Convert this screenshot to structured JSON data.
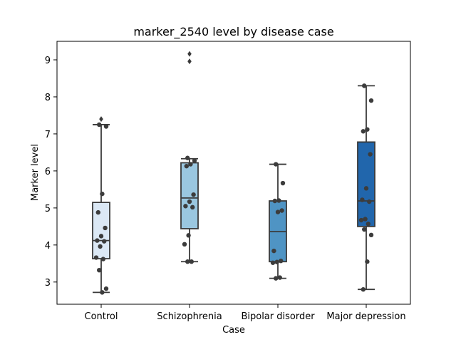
{
  "chart_data": {
    "type": "box",
    "title": "marker_2540 level by disease case",
    "xlabel": "Case",
    "ylabel": "Marker level",
    "ylim": [
      2.4,
      9.5
    ],
    "yticks": [
      "3",
      "4",
      "5",
      "6",
      "7",
      "8",
      "9"
    ],
    "categories": [
      "Control",
      "Schizophrenia",
      "Bipolar disorder",
      "Major depression"
    ],
    "box_colors": [
      "#dbe8f5",
      "#9ac7e0",
      "#4f94c4",
      "#2166ac"
    ],
    "grid": false,
    "boxes": [
      {
        "q1": 3.63,
        "median": 4.12,
        "q3": 5.15,
        "whisker_low": 2.72,
        "whisker_high": 7.25,
        "outliers": [
          7.4
        ]
      },
      {
        "q1": 4.44,
        "median": 5.27,
        "q3": 6.22,
        "whisker_low": 3.55,
        "whisker_high": 6.33,
        "outliers": [
          9.16,
          8.96
        ]
      },
      {
        "q1": 3.55,
        "median": 4.36,
        "q3": 5.19,
        "whisker_low": 3.1,
        "whisker_high": 6.18,
        "outliers": []
      },
      {
        "q1": 4.5,
        "median": 5.19,
        "q3": 6.78,
        "whisker_low": 2.8,
        "whisker_high": 8.3,
        "outliers": []
      }
    ],
    "points": [
      [
        7.25,
        7.2,
        5.38,
        4.88,
        4.46,
        4.24,
        4.12,
        4.1,
        3.96,
        3.66,
        3.62,
        3.32,
        2.82,
        2.72
      ],
      [
        6.35,
        6.28,
        6.18,
        6.13,
        5.36,
        5.17,
        5.05,
        5.02,
        4.26,
        4.02,
        3.55,
        3.55
      ],
      [
        6.18,
        5.67,
        5.2,
        5.19,
        4.93,
        4.89,
        3.84,
        3.57,
        3.54,
        3.52,
        3.12,
        3.1
      ],
      [
        8.3,
        7.9,
        7.12,
        7.07,
        6.45,
        5.53,
        5.22,
        5.17,
        4.7,
        4.67,
        4.57,
        4.42,
        4.27,
        3.55,
        2.8
      ]
    ]
  }
}
